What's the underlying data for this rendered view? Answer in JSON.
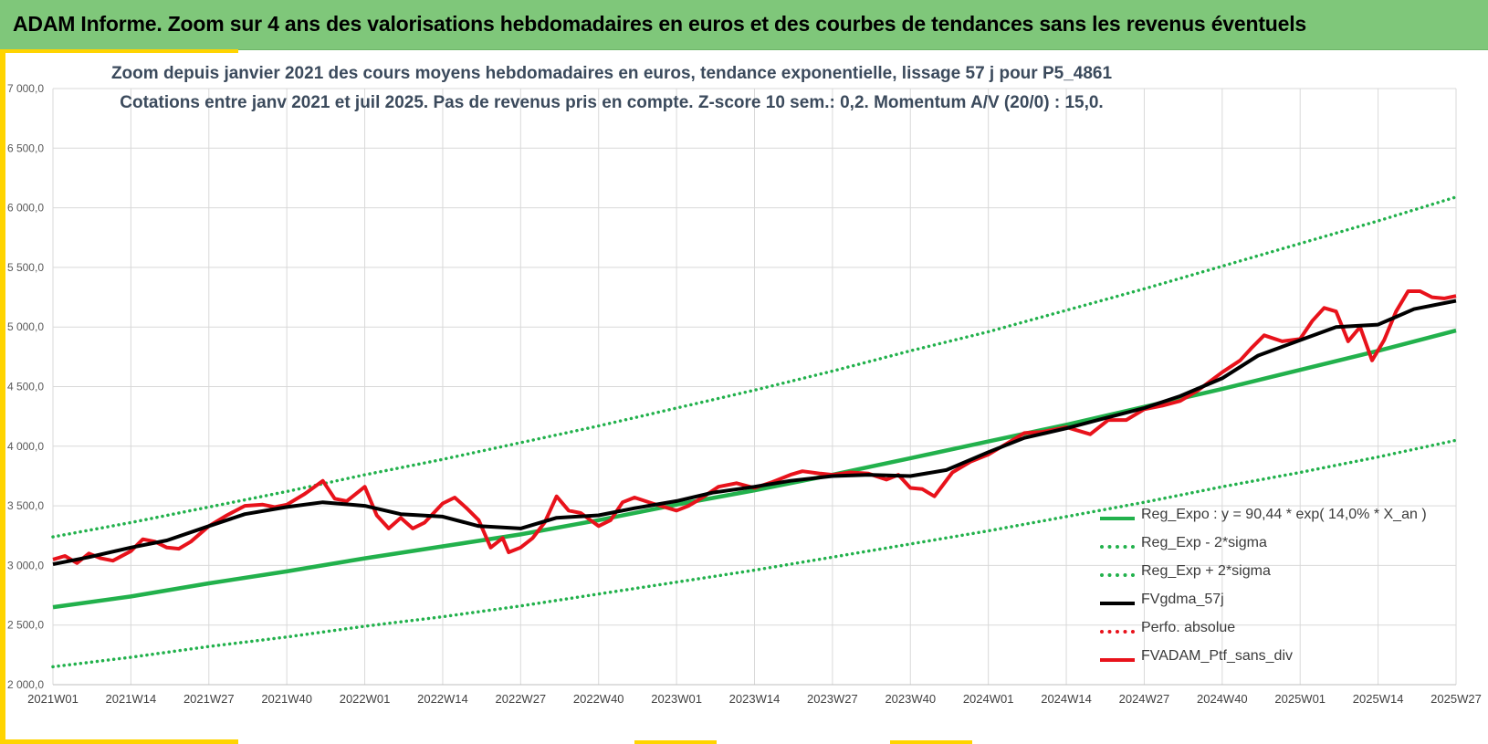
{
  "header": {
    "title": "ADAM Informe. Zoom sur 4 ans des valorisations hebdomadaires en euros et des courbes de tendances sans les revenus éventuels"
  },
  "colors": {
    "banner": "#7fc77a",
    "accent": "#ffd400",
    "trend": "#22b14c",
    "band": "#22b14c",
    "average": "#000000",
    "portfolio": "#e8121b",
    "absolute": "#e8121b"
  },
  "chart_data": {
    "type": "line",
    "title": "Zoom depuis janvier 2021 des cours moyens hebdomadaires  en euros, tendance exponentielle, lissage 57 j pour P5_4861",
    "subtitle": "Cotations entre janv 2021 et juil 2025. Pas de revenus pris en compte. Z-score 10 sem.: 0,2. Momentum A/V (20/0) : 15,0.",
    "ylim": [
      2000,
      7000
    ],
    "ytick_labels": [
      "2 000,0",
      "2 500,0",
      "3 000,0",
      "3 500,0",
      "4 000,0",
      "4 500,0",
      "5 000,0",
      "5 500,0",
      "6 000,0",
      "6 500,0",
      "7 000,0"
    ],
    "ytick_values": [
      2000,
      2500,
      3000,
      3500,
      4000,
      4500,
      5000,
      5500,
      6000,
      6500,
      7000
    ],
    "xtick_labels": [
      "2021W01",
      "2021W14",
      "2021W27",
      "2021W40",
      "2022W01",
      "2022W14",
      "2022W27",
      "2022W40",
      "2023W01",
      "2023W14",
      "2023W27",
      "2023W40",
      "2024W01",
      "2024W14",
      "2024W27",
      "2024W40",
      "2025W01",
      "2025W14",
      "2025W27"
    ],
    "grid": true,
    "legend_position": "bottom-right",
    "series": [
      {
        "name": "Reg_Expo : y = 90,44 * exp( 14,0% *  X_an )",
        "style": "solid",
        "color": "#22b14c",
        "points": [
          [
            "2021W01",
            2650
          ],
          [
            "2021W14",
            2740
          ],
          [
            "2021W27",
            2850
          ],
          [
            "2021W40",
            2950
          ],
          [
            "2022W01",
            3060
          ],
          [
            "2022W14",
            3160
          ],
          [
            "2022W27",
            3260
          ],
          [
            "2022W40",
            3380
          ],
          [
            "2023W01",
            3510
          ],
          [
            "2023W14",
            3630
          ],
          [
            "2023W27",
            3760
          ],
          [
            "2023W40",
            3900
          ],
          [
            "2024W01",
            4040
          ],
          [
            "2024W14",
            4180
          ],
          [
            "2024W27",
            4330
          ],
          [
            "2024W40",
            4480
          ],
          [
            "2025W01",
            4640
          ],
          [
            "2025W14",
            4800
          ],
          [
            "2025W27",
            4970
          ]
        ]
      },
      {
        "name": "Reg_Exp - 2*sigma",
        "style": "dotted",
        "color": "#22b14c",
        "points": [
          [
            "2021W01",
            2150
          ],
          [
            "2021W14",
            2230
          ],
          [
            "2021W27",
            2320
          ],
          [
            "2021W40",
            2400
          ],
          [
            "2022W01",
            2490
          ],
          [
            "2022W14",
            2570
          ],
          [
            "2022W27",
            2660
          ],
          [
            "2022W40",
            2760
          ],
          [
            "2023W01",
            2860
          ],
          [
            "2023W14",
            2960
          ],
          [
            "2023W27",
            3070
          ],
          [
            "2023W40",
            3180
          ],
          [
            "2024W01",
            3290
          ],
          [
            "2024W14",
            3410
          ],
          [
            "2024W27",
            3530
          ],
          [
            "2024W40",
            3660
          ],
          [
            "2025W01",
            3780
          ],
          [
            "2025W14",
            3910
          ],
          [
            "2025W27",
            4050
          ]
        ]
      },
      {
        "name": "Reg_Exp + 2*sigma",
        "style": "dotted",
        "color": "#22b14c",
        "points": [
          [
            "2021W01",
            3240
          ],
          [
            "2021W14",
            3360
          ],
          [
            "2021W27",
            3490
          ],
          [
            "2021W40",
            3620
          ],
          [
            "2022W01",
            3760
          ],
          [
            "2022W14",
            3890
          ],
          [
            "2022W27",
            4030
          ],
          [
            "2022W40",
            4170
          ],
          [
            "2023W01",
            4320
          ],
          [
            "2023W14",
            4470
          ],
          [
            "2023W27",
            4630
          ],
          [
            "2023W40",
            4800
          ],
          [
            "2024W01",
            4960
          ],
          [
            "2024W14",
            5140
          ],
          [
            "2024W27",
            5320
          ],
          [
            "2024W40",
            5510
          ],
          [
            "2025W01",
            5700
          ],
          [
            "2025W14",
            5890
          ],
          [
            "2025W27",
            6090
          ]
        ]
      },
      {
        "name": "FVgdma_57j",
        "style": "solid",
        "color": "#000000",
        "points": [
          [
            "2021W01",
            3010
          ],
          [
            "2021W07",
            3070
          ],
          [
            "2021W14",
            3150
          ],
          [
            "2021W20",
            3210
          ],
          [
            "2021W27",
            3330
          ],
          [
            "2021W33",
            3430
          ],
          [
            "2021W40",
            3490
          ],
          [
            "2021W46",
            3530
          ],
          [
            "2022W01",
            3500
          ],
          [
            "2022W07",
            3430
          ],
          [
            "2022W14",
            3410
          ],
          [
            "2022W20",
            3330
          ],
          [
            "2022W27",
            3310
          ],
          [
            "2022W33",
            3400
          ],
          [
            "2022W40",
            3420
          ],
          [
            "2022W46",
            3480
          ],
          [
            "2023W01",
            3540
          ],
          [
            "2023W07",
            3610
          ],
          [
            "2023W14",
            3660
          ],
          [
            "2023W20",
            3710
          ],
          [
            "2023W27",
            3750
          ],
          [
            "2023W33",
            3760
          ],
          [
            "2023W40",
            3750
          ],
          [
            "2023W46",
            3800
          ],
          [
            "2024W01",
            3950
          ],
          [
            "2024W07",
            4070
          ],
          [
            "2024W14",
            4150
          ],
          [
            "2024W20",
            4230
          ],
          [
            "2024W27",
            4320
          ],
          [
            "2024W33",
            4420
          ],
          [
            "2024W40",
            4570
          ],
          [
            "2024W46",
            4760
          ],
          [
            "2025W01",
            4890
          ],
          [
            "2025W07",
            5000
          ],
          [
            "2025W14",
            5020
          ],
          [
            "2025W20",
            5150
          ],
          [
            "2025W27",
            5220
          ]
        ]
      },
      {
        "name": "Perfo. absolue",
        "style": "dotted",
        "color": "#e8121b",
        "points": []
      },
      {
        "name": "FVADAM_Ptf_sans_div",
        "style": "solid",
        "color": "#e8121b",
        "points": [
          [
            "2021W01",
            3050
          ],
          [
            "2021W03",
            3080
          ],
          [
            "2021W05",
            3020
          ],
          [
            "2021W07",
            3100
          ],
          [
            "2021W09",
            3060
          ],
          [
            "2021W11",
            3040
          ],
          [
            "2021W14",
            3120
          ],
          [
            "2021W16",
            3220
          ],
          [
            "2021W18",
            3200
          ],
          [
            "2021W20",
            3150
          ],
          [
            "2021W22",
            3140
          ],
          [
            "2021W24",
            3200
          ],
          [
            "2021W27",
            3330
          ],
          [
            "2021W30",
            3420
          ],
          [
            "2021W33",
            3500
          ],
          [
            "2021W36",
            3510
          ],
          [
            "2021W38",
            3490
          ],
          [
            "2021W40",
            3510
          ],
          [
            "2021W43",
            3600
          ],
          [
            "2021W46",
            3710
          ],
          [
            "2021W48",
            3560
          ],
          [
            "2021W50",
            3540
          ],
          [
            "2022W01",
            3660
          ],
          [
            "2022W03",
            3420
          ],
          [
            "2022W05",
            3310
          ],
          [
            "2022W07",
            3400
          ],
          [
            "2022W09",
            3310
          ],
          [
            "2022W11",
            3360
          ],
          [
            "2022W14",
            3520
          ],
          [
            "2022W16",
            3570
          ],
          [
            "2022W18",
            3480
          ],
          [
            "2022W20",
            3380
          ],
          [
            "2022W22",
            3150
          ],
          [
            "2022W24",
            3230
          ],
          [
            "2022W25",
            3110
          ],
          [
            "2022W27",
            3150
          ],
          [
            "2022W29",
            3230
          ],
          [
            "2022W31",
            3360
          ],
          [
            "2022W33",
            3580
          ],
          [
            "2022W35",
            3460
          ],
          [
            "2022W37",
            3440
          ],
          [
            "2022W40",
            3330
          ],
          [
            "2022W42",
            3380
          ],
          [
            "2022W44",
            3530
          ],
          [
            "2022W46",
            3570
          ],
          [
            "2022W49",
            3520
          ],
          [
            "2023W01",
            3460
          ],
          [
            "2023W03",
            3500
          ],
          [
            "2023W05",
            3560
          ],
          [
            "2023W08",
            3660
          ],
          [
            "2023W11",
            3690
          ],
          [
            "2023W14",
            3650
          ],
          [
            "2023W17",
            3700
          ],
          [
            "2023W20",
            3760
          ],
          [
            "2023W22",
            3790
          ],
          [
            "2023W25",
            3770
          ],
          [
            "2023W27",
            3760
          ],
          [
            "2023W30",
            3780
          ],
          [
            "2023W33",
            3770
          ],
          [
            "2023W36",
            3720
          ],
          [
            "2023W38",
            3760
          ],
          [
            "2023W40",
            3650
          ],
          [
            "2023W42",
            3640
          ],
          [
            "2023W44",
            3580
          ],
          [
            "2023W47",
            3780
          ],
          [
            "2023W50",
            3870
          ],
          [
            "2024W01",
            3930
          ],
          [
            "2024W04",
            4020
          ],
          [
            "2024W07",
            4110
          ],
          [
            "2024W10",
            4120
          ],
          [
            "2024W14",
            4160
          ],
          [
            "2024W16",
            4130
          ],
          [
            "2024W18",
            4100
          ],
          [
            "2024W21",
            4220
          ],
          [
            "2024W24",
            4220
          ],
          [
            "2024W27",
            4310
          ],
          [
            "2024W30",
            4340
          ],
          [
            "2024W33",
            4380
          ],
          [
            "2024W36",
            4470
          ],
          [
            "2024W40",
            4620
          ],
          [
            "2024W43",
            4720
          ],
          [
            "2024W45",
            4830
          ],
          [
            "2024W47",
            4930
          ],
          [
            "2024W50",
            4880
          ],
          [
            "2025W01",
            4900
          ],
          [
            "2025W03",
            5050
          ],
          [
            "2025W05",
            5160
          ],
          [
            "2025W07",
            5130
          ],
          [
            "2025W09",
            4880
          ],
          [
            "2025W11",
            5000
          ],
          [
            "2025W13",
            4720
          ],
          [
            "2025W15",
            4890
          ],
          [
            "2025W17",
            5130
          ],
          [
            "2025W19",
            5300
          ],
          [
            "2025W21",
            5300
          ],
          [
            "2025W23",
            5250
          ],
          [
            "2025W25",
            5240
          ],
          [
            "2025W27",
            5260
          ]
        ]
      }
    ]
  }
}
